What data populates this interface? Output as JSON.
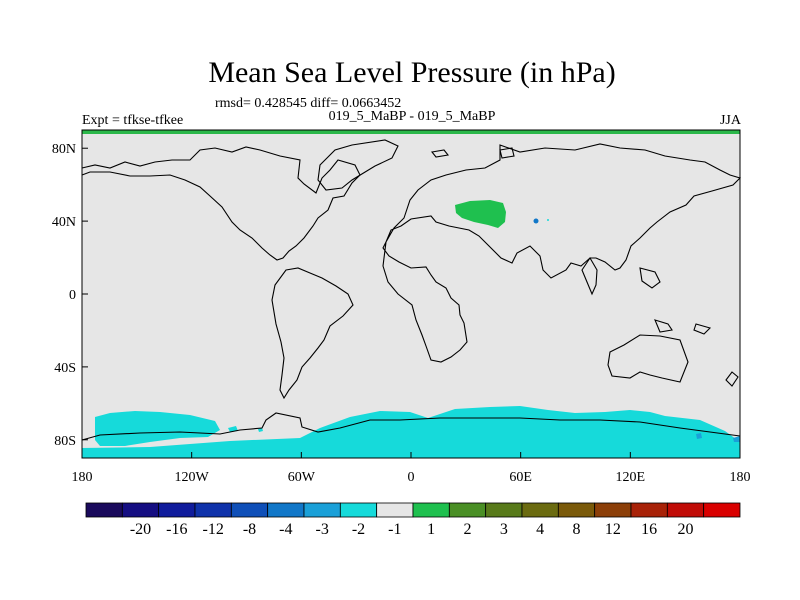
{
  "chart_data": {
    "type": "heatmap",
    "title": "Mean Sea Level Pressure (in hPa)",
    "stats": "rmsd= 0.428545  diff= 0.0663452",
    "left_label": "Expt = tfkse-tfkee",
    "center_label": "019_5_MaBP - 019_5_MaBP",
    "right_label": "JJA",
    "x_ticks": [
      {
        "lon": -180,
        "label": "180"
      },
      {
        "lon": -120,
        "label": "120W"
      },
      {
        "lon": -60,
        "label": "60W"
      },
      {
        "lon": 0,
        "label": "0"
      },
      {
        "lon": 60,
        "label": "60E"
      },
      {
        "lon": 120,
        "label": "120E"
      },
      {
        "lon": 180,
        "label": "180"
      }
    ],
    "y_ticks": [
      {
        "lat": 80,
        "label": "80N"
      },
      {
        "lat": 40,
        "label": "40N"
      },
      {
        "lat": 0,
        "label": "0"
      },
      {
        "lat": -40,
        "label": "40S"
      },
      {
        "lat": -80,
        "label": "80S"
      }
    ],
    "xlim": [
      -180,
      180
    ],
    "ylim": [
      -90,
      90
    ],
    "colorbar": {
      "colors": [
        "#1a0a5c",
        "#150e82",
        "#101c9c",
        "#0f32aa",
        "#0f4fb8",
        "#1177c8",
        "#1aa0d8",
        "#16dada",
        "#e6e6e6",
        "#1fc04f",
        "#4a8f25",
        "#587a1a",
        "#6b6b10",
        "#7a5a0a",
        "#8c3f09",
        "#a82208",
        "#c00b06",
        "#d90000"
      ],
      "labels": [
        "-20",
        "-16",
        "-12",
        "-8",
        "-4",
        "-3",
        "-2",
        "-1",
        "1",
        "2",
        "3",
        "4",
        "8",
        "12",
        "16",
        "20"
      ]
    }
  }
}
